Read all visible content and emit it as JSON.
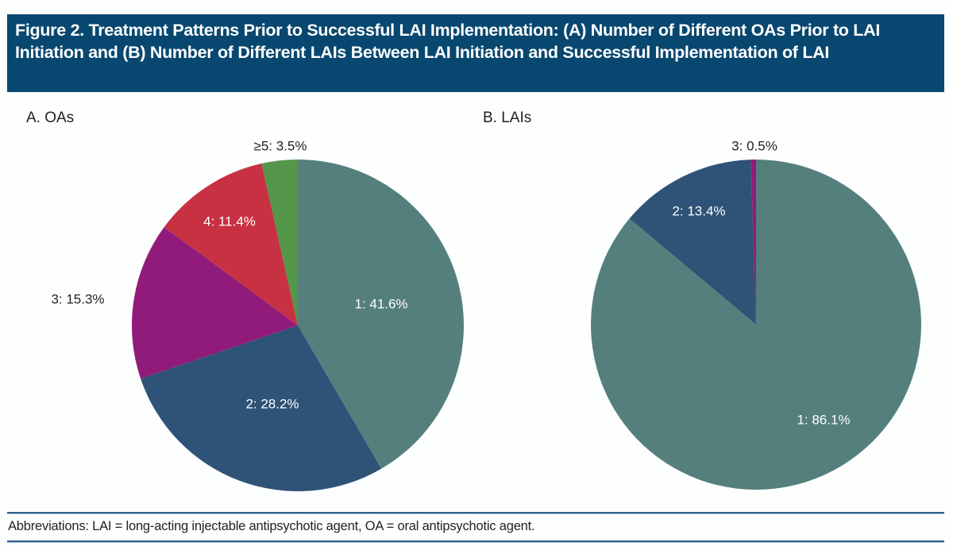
{
  "figure": {
    "title": "Figure 2. Treatment Patterns Prior to Successful LAI Implementation: (A) Number of Different OAs Prior to LAI Initiation and (B) Number of Different LAIs Between LAI Initiation and Successful Implementation of LAI",
    "footnote": "Abbreviations: LAI = long-acting injectable antipsychotic agent, OA = oral antipsychotic agent.",
    "colors": {
      "title_bg": "#08476f",
      "slice_1": "#547f7d",
      "slice_2": "#2f5277",
      "slice_3": "#911b7b",
      "slice_4": "#c83142",
      "slice_5plus": "#54964a",
      "rule": "#2f5f8a"
    }
  },
  "chart_data": [
    {
      "type": "pie",
      "title": "A. OAs",
      "start": "12 o'clock",
      "direction": "clockwise",
      "slices": [
        {
          "category": "1",
          "value": 41.6,
          "label": "1: 41.6%",
          "color": "#547f7d",
          "label_color": "#ffffff",
          "label_position": "inside"
        },
        {
          "category": "2",
          "value": 28.2,
          "label": "2: 28.2%",
          "color": "#2f5277",
          "label_color": "#ffffff",
          "label_position": "inside"
        },
        {
          "category": "3",
          "value": 15.3,
          "label": "3: 15.3%",
          "color": "#911b7b",
          "label_color": "#231f20",
          "label_position": "outside"
        },
        {
          "category": "4",
          "value": 11.4,
          "label": "4: 11.4%",
          "color": "#c83142",
          "label_color": "#ffffff",
          "label_position": "inside"
        },
        {
          "category": "≥5",
          "value": 3.5,
          "label": "≥5: 3.5%",
          "color": "#54964a",
          "label_color": "#231f20",
          "label_position": "outside"
        }
      ]
    },
    {
      "type": "pie",
      "title": "B. LAIs",
      "start": "12 o'clock",
      "direction": "clockwise",
      "slices": [
        {
          "category": "1",
          "value": 86.1,
          "label": "1: 86.1%",
          "color": "#547f7d",
          "label_color": "#ffffff",
          "label_position": "inside"
        },
        {
          "category": "2",
          "value": 13.4,
          "label": "2: 13.4%",
          "color": "#2f5277",
          "label_color": "#ffffff",
          "label_position": "inside"
        },
        {
          "category": "3",
          "value": 0.5,
          "label": "3: 0.5%",
          "color": "#911b7b",
          "label_color": "#231f20",
          "label_position": "outside"
        }
      ]
    }
  ]
}
